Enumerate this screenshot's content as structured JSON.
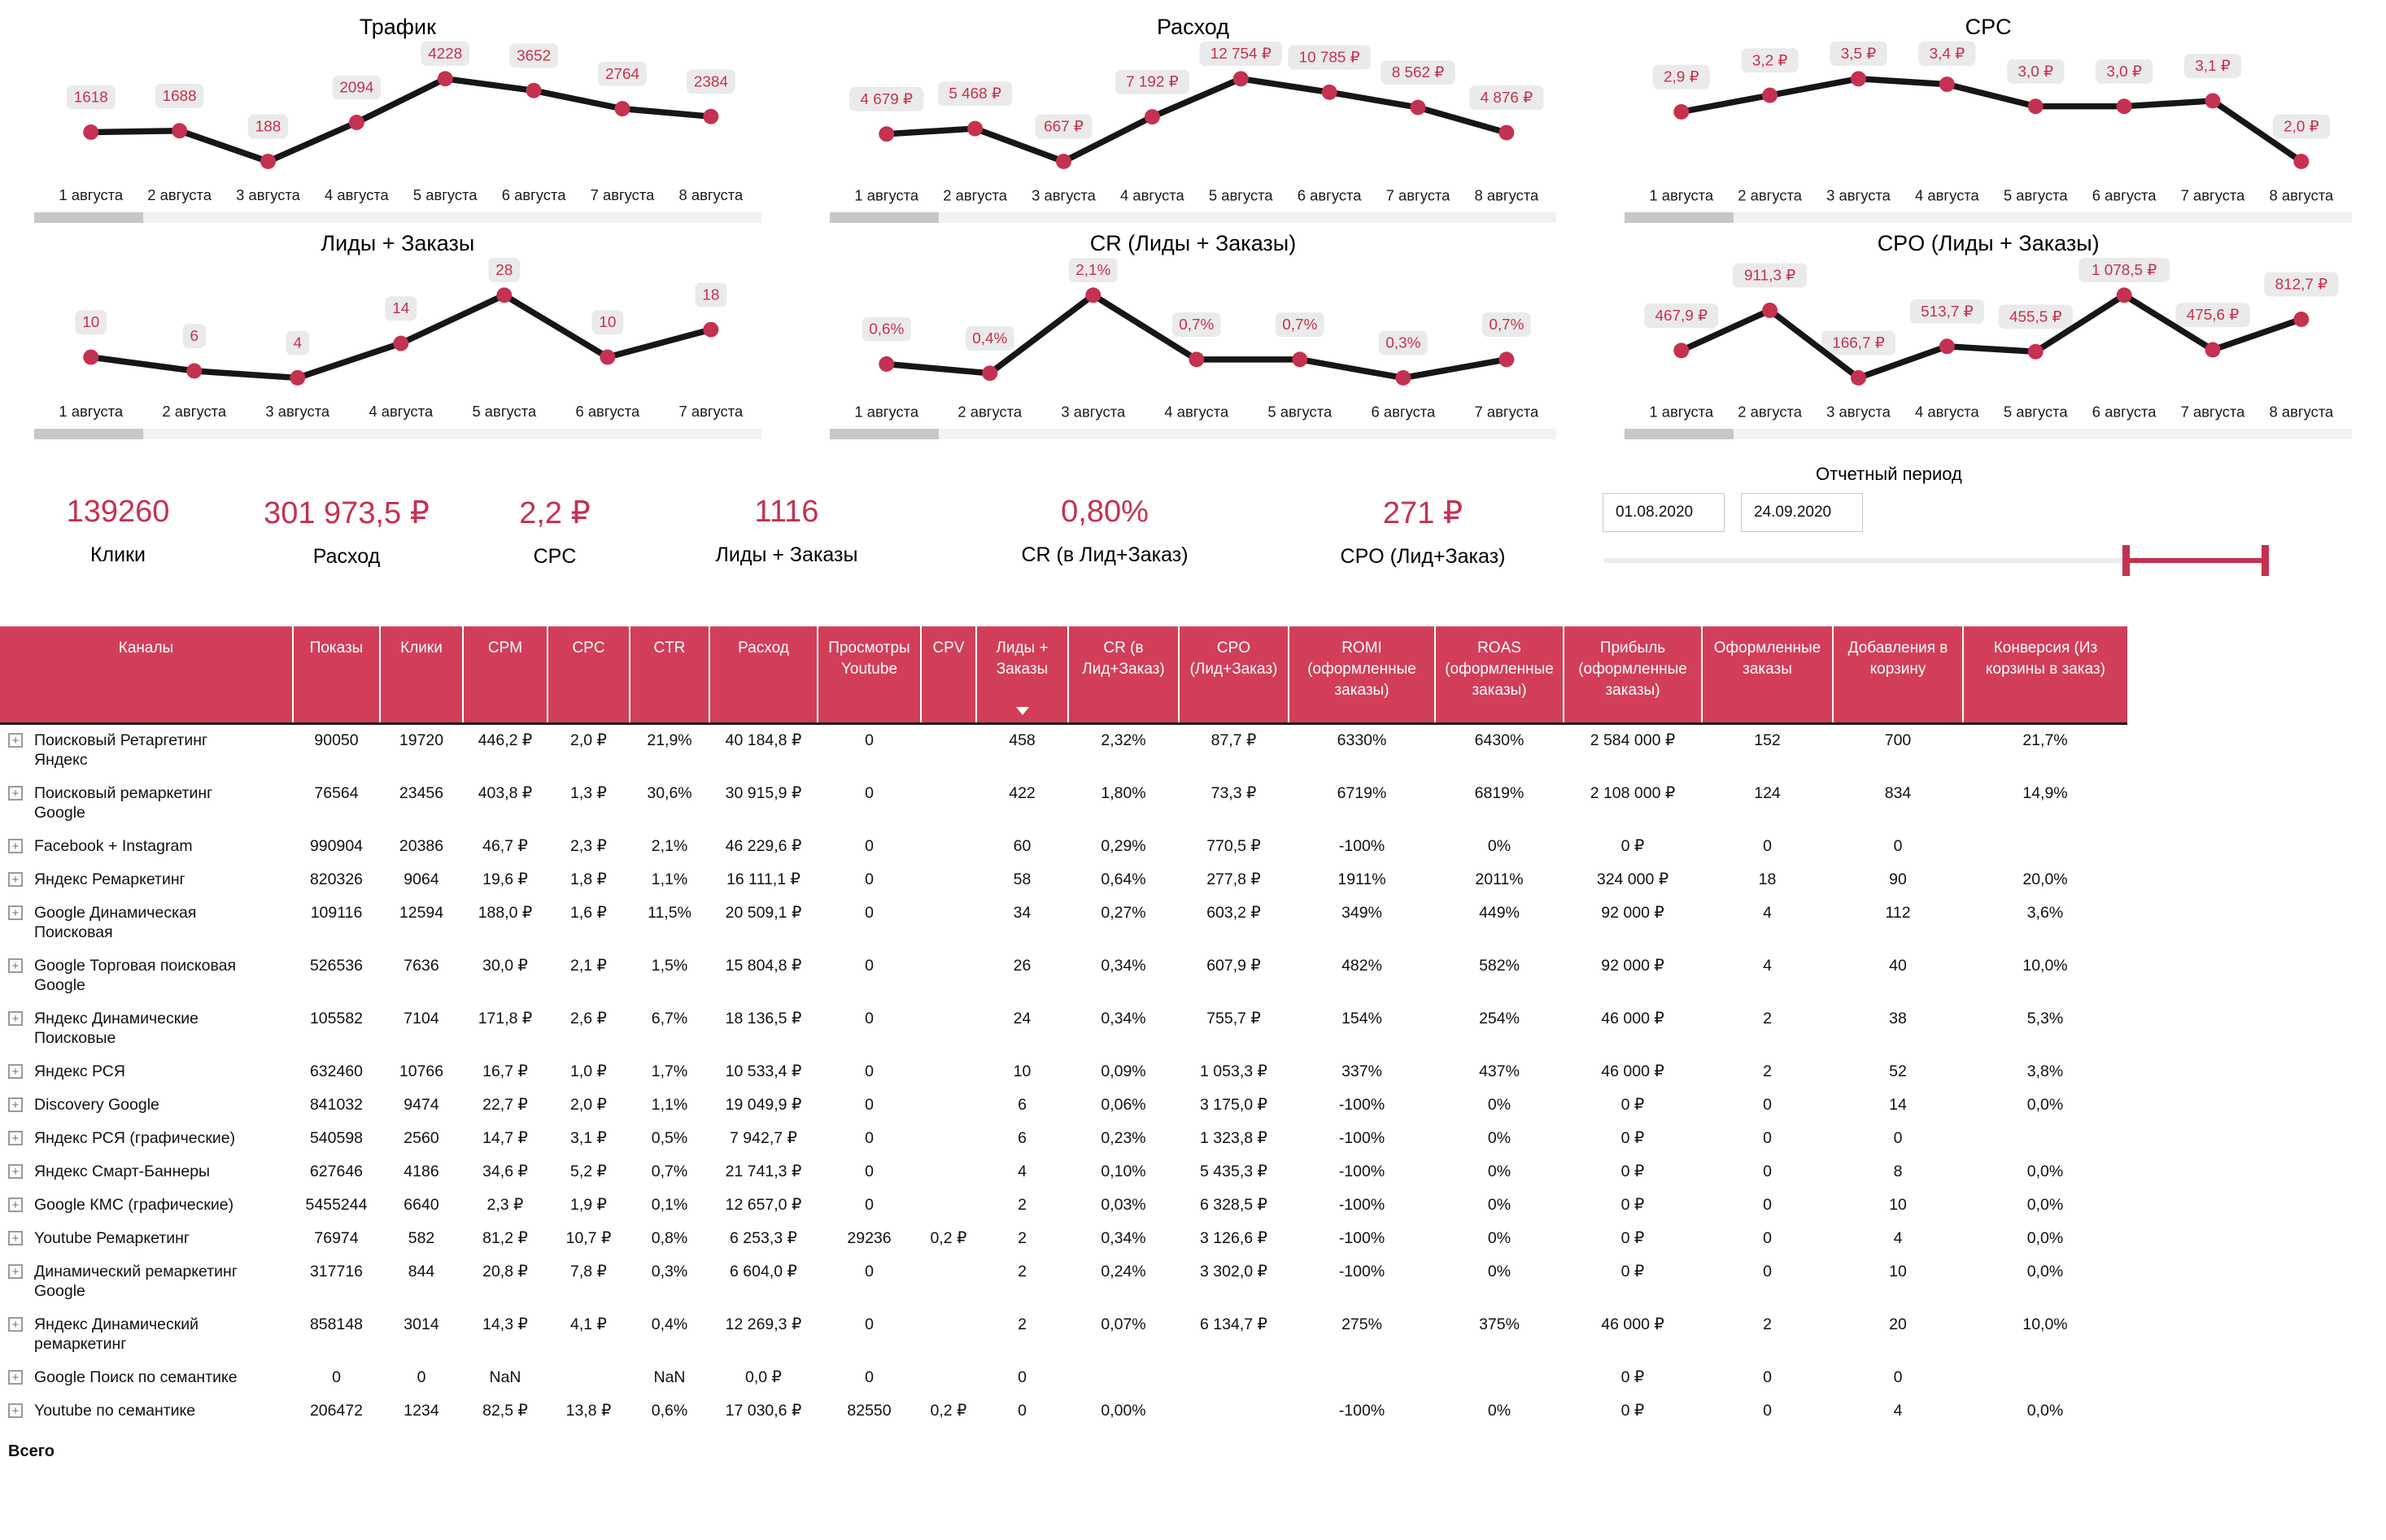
{
  "colors": {
    "accent": "#c53150",
    "table_header_bg": "#d23e59",
    "pill_bg": "#eaeaea",
    "line": "#161616",
    "scroll_track": "#f2f2f2",
    "scroll_thumb": "#c7c7c7"
  },
  "charts": [
    {
      "type": "line",
      "title": "Трафик",
      "x": [
        "1 августа",
        "2 августа",
        "3 августа",
        "4 августа",
        "5 августа",
        "6 августа",
        "7 августа",
        "8 августа"
      ],
      "values": [
        1618,
        1688,
        188,
        2094,
        4228,
        3652,
        2764,
        2384
      ],
      "labels": [
        "1618",
        "1688",
        "188",
        "2094",
        "4228",
        "3652",
        "2764",
        "2384"
      ]
    },
    {
      "type": "line",
      "title": "Расход",
      "x": [
        "1 августа",
        "2 августа",
        "3 августа",
        "4 августа",
        "5 августа",
        "6 августа",
        "7 августа",
        "8 августа"
      ],
      "values": [
        4679,
        5468,
        667,
        7192,
        12754,
        10785,
        8562,
        4876
      ],
      "labels": [
        "4 679 ₽",
        "5 468 ₽",
        "667 ₽",
        "7 192 ₽",
        "12 754 ₽",
        "10 785 ₽",
        "8 562 ₽",
        "4 876 ₽"
      ]
    },
    {
      "type": "line",
      "title": "CPC",
      "x": [
        "1 августа",
        "2 августа",
        "3 августа",
        "4 августа",
        "5 августа",
        "6 августа",
        "7 августа",
        "8 августа"
      ],
      "values": [
        2.9,
        3.2,
        3.5,
        3.4,
        3.0,
        3.0,
        3.1,
        2.0
      ],
      "labels": [
        "2,9 ₽",
        "3,2 ₽",
        "3,5 ₽",
        "3,4 ₽",
        "3,0 ₽",
        "3,0 ₽",
        "3,1 ₽",
        "2,0 ₽"
      ]
    },
    {
      "type": "line",
      "title": "Лиды + Заказы",
      "x": [
        "1 августа",
        "2 августа",
        "3 августа",
        "4 августа",
        "5 августа",
        "6 августа",
        "7 августа"
      ],
      "values": [
        10,
        6,
        4,
        14,
        28,
        10,
        18
      ],
      "labels": [
        "10",
        "6",
        "4",
        "14",
        "28",
        "10",
        "18"
      ]
    },
    {
      "type": "line",
      "title": "CR (Лиды + Заказы)",
      "x": [
        "1 августа",
        "2 августа",
        "3 августа",
        "4 августа",
        "5 августа",
        "6 августа",
        "7 августа"
      ],
      "values": [
        0.6,
        0.4,
        2.1,
        0.7,
        0.7,
        0.3,
        0.7
      ],
      "labels": [
        "0,6%",
        "0,4%",
        "2,1%",
        "0,7%",
        "0,7%",
        "0,3%",
        "0,7%"
      ]
    },
    {
      "type": "line",
      "title": "CPO (Лиды + Заказы)",
      "x": [
        "1 августа",
        "2 августа",
        "3 августа",
        "4 августа",
        "5 августа",
        "6 августа",
        "7 августа",
        "8 августа"
      ],
      "values": [
        467.9,
        911.3,
        166.7,
        513.7,
        455.5,
        1078.5,
        475.6,
        812.7
      ],
      "labels": [
        "467,9 ₽",
        "911,3 ₽",
        "166,7 ₽",
        "513,7 ₽",
        "455,5 ₽",
        "1 078,5 ₽",
        "475,6 ₽",
        "812,7 ₽"
      ]
    }
  ],
  "kpis": [
    {
      "value": "139260",
      "label": "Клики"
    },
    {
      "value": "301 973,5 ₽",
      "label": "Расход"
    },
    {
      "value": "2,2 ₽",
      "label": "CPC"
    },
    {
      "value": "1116",
      "label": "Лиды + Заказы"
    },
    {
      "value": "0,80%",
      "label": "CR (в Лид+Заказ)"
    },
    {
      "value": "271 ₽",
      "label": "CPO (Лид+Заказ)"
    }
  ],
  "filter": {
    "title": "Отчетный период",
    "date_from": "01.08.2020",
    "date_to": "24.09.2020"
  },
  "table": {
    "headers": [
      "Каналы",
      "Показы",
      "Клики",
      "CPM",
      "CPC",
      "CTR",
      "Расход",
      "Просмотры Youtube",
      "CPV",
      "Лиды + Заказы",
      "CR (в Лид+Заказ)",
      "CPO (Лид+Заказ)",
      "ROMI (оформленные заказы)",
      "ROAS (оформленные заказы)",
      "Прибыль (оформленные заказы)",
      "Оформленные заказы",
      "Добавления в корзину",
      "Конверсия (Из корзины в заказ)"
    ],
    "sorted_column": "Лиды + Заказы",
    "rows": [
      {
        "channel": "Поисковый Ретаргетинг Яндекс",
        "cells": [
          "90050",
          "19720",
          "446,2 ₽",
          "2,0 ₽",
          "21,9%",
          "40 184,8 ₽",
          "0",
          "",
          "458",
          "2,32%",
          "87,7 ₽",
          "6330%",
          "6430%",
          "2 584 000 ₽",
          "152",
          "700",
          "21,7%"
        ]
      },
      {
        "channel": "Поисковый ремаркетинг Google",
        "cells": [
          "76564",
          "23456",
          "403,8 ₽",
          "1,3 ₽",
          "30,6%",
          "30 915,9 ₽",
          "0",
          "",
          "422",
          "1,80%",
          "73,3 ₽",
          "6719%",
          "6819%",
          "2 108 000 ₽",
          "124",
          "834",
          "14,9%"
        ]
      },
      {
        "channel": "Facebook + Instagram",
        "cells": [
          "990904",
          "20386",
          "46,7 ₽",
          "2,3 ₽",
          "2,1%",
          "46 229,6 ₽",
          "0",
          "",
          "60",
          "0,29%",
          "770,5 ₽",
          "-100%",
          "0%",
          "0 ₽",
          "0",
          "0",
          ""
        ]
      },
      {
        "channel": "Яндекс Ремаркетинг",
        "cells": [
          "820326",
          "9064",
          "19,6 ₽",
          "1,8 ₽",
          "1,1%",
          "16 111,1 ₽",
          "0",
          "",
          "58",
          "0,64%",
          "277,8 ₽",
          "1911%",
          "2011%",
          "324 000 ₽",
          "18",
          "90",
          "20,0%"
        ]
      },
      {
        "channel": "Google Динамическая Поисковая",
        "cells": [
          "109116",
          "12594",
          "188,0 ₽",
          "1,6 ₽",
          "11,5%",
          "20 509,1 ₽",
          "0",
          "",
          "34",
          "0,27%",
          "603,2 ₽",
          "349%",
          "449%",
          "92 000 ₽",
          "4",
          "112",
          "3,6%"
        ]
      },
      {
        "channel": "Google Торговая поисковая Google",
        "cells": [
          "526536",
          "7636",
          "30,0 ₽",
          "2,1 ₽",
          "1,5%",
          "15 804,8 ₽",
          "0",
          "",
          "26",
          "0,34%",
          "607,9 ₽",
          "482%",
          "582%",
          "92 000 ₽",
          "4",
          "40",
          "10,0%"
        ]
      },
      {
        "channel": "Яндекс Динамические Поисковые",
        "cells": [
          "105582",
          "7104",
          "171,8 ₽",
          "2,6 ₽",
          "6,7%",
          "18 136,5 ₽",
          "0",
          "",
          "24",
          "0,34%",
          "755,7 ₽",
          "154%",
          "254%",
          "46 000 ₽",
          "2",
          "38",
          "5,3%"
        ]
      },
      {
        "channel": "Яндекс РСЯ",
        "cells": [
          "632460",
          "10766",
          "16,7 ₽",
          "1,0 ₽",
          "1,7%",
          "10 533,4 ₽",
          "0",
          "",
          "10",
          "0,09%",
          "1 053,3 ₽",
          "337%",
          "437%",
          "46 000 ₽",
          "2",
          "52",
          "3,8%"
        ]
      },
      {
        "channel": "Discovery Google",
        "cells": [
          "841032",
          "9474",
          "22,7 ₽",
          "2,0 ₽",
          "1,1%",
          "19 049,9 ₽",
          "0",
          "",
          "6",
          "0,06%",
          "3 175,0 ₽",
          "-100%",
          "0%",
          "0 ₽",
          "0",
          "14",
          "0,0%"
        ]
      },
      {
        "channel": "Яндекс РСЯ (графические)",
        "cells": [
          "540598",
          "2560",
          "14,7 ₽",
          "3,1 ₽",
          "0,5%",
          "7 942,7 ₽",
          "0",
          "",
          "6",
          "0,23%",
          "1 323,8 ₽",
          "-100%",
          "0%",
          "0 ₽",
          "0",
          "0",
          ""
        ]
      },
      {
        "channel": "Яндекс Смарт-Баннеры",
        "cells": [
          "627646",
          "4186",
          "34,6 ₽",
          "5,2 ₽",
          "0,7%",
          "21 741,3 ₽",
          "0",
          "",
          "4",
          "0,10%",
          "5 435,3 ₽",
          "-100%",
          "0%",
          "0 ₽",
          "0",
          "8",
          "0,0%"
        ]
      },
      {
        "channel": "Google КМС (графические)",
        "cells": [
          "5455244",
          "6640",
          "2,3 ₽",
          "1,9 ₽",
          "0,1%",
          "12 657,0 ₽",
          "0",
          "",
          "2",
          "0,03%",
          "6 328,5 ₽",
          "-100%",
          "0%",
          "0 ₽",
          "0",
          "10",
          "0,0%"
        ]
      },
      {
        "channel": "Youtube Ремаркетинг",
        "cells": [
          "76974",
          "582",
          "81,2 ₽",
          "10,7 ₽",
          "0,8%",
          "6 253,3 ₽",
          "29236",
          "0,2 ₽",
          "2",
          "0,34%",
          "3 126,6 ₽",
          "-100%",
          "0%",
          "0 ₽",
          "0",
          "4",
          "0,0%"
        ]
      },
      {
        "channel": "Динамический ремаркетинг Google",
        "cells": [
          "317716",
          "844",
          "20,8 ₽",
          "7,8 ₽",
          "0,3%",
          "6 604,0 ₽",
          "0",
          "",
          "2",
          "0,24%",
          "3 302,0 ₽",
          "-100%",
          "0%",
          "0 ₽",
          "0",
          "10",
          "0,0%"
        ]
      },
      {
        "channel": "Яндекс Динамический ремаркетинг",
        "cells": [
          "858148",
          "3014",
          "14,3 ₽",
          "4,1 ₽",
          "0,4%",
          "12 269,3 ₽",
          "0",
          "",
          "2",
          "0,07%",
          "6 134,7 ₽",
          "275%",
          "375%",
          "46 000 ₽",
          "2",
          "20",
          "10,0%"
        ]
      },
      {
        "channel": "Google Поиск по семантике",
        "cells": [
          "0",
          "0",
          "NaN",
          "",
          "NaN",
          "0,0 ₽",
          "0",
          "",
          "0",
          "",
          "",
          "",
          "",
          "0 ₽",
          "0",
          "0",
          ""
        ]
      },
      {
        "channel": "Youtube по семантике",
        "cells": [
          "206472",
          "1234",
          "82,5 ₽",
          "13,8 ₽",
          "0,6%",
          "17 030,6 ₽",
          "82550",
          "0,2 ₽",
          "0",
          "0,00%",
          "",
          "-100%",
          "0%",
          "0 ₽",
          "0",
          "4",
          "0,0%"
        ]
      }
    ],
    "total_label": "Всего"
  }
}
